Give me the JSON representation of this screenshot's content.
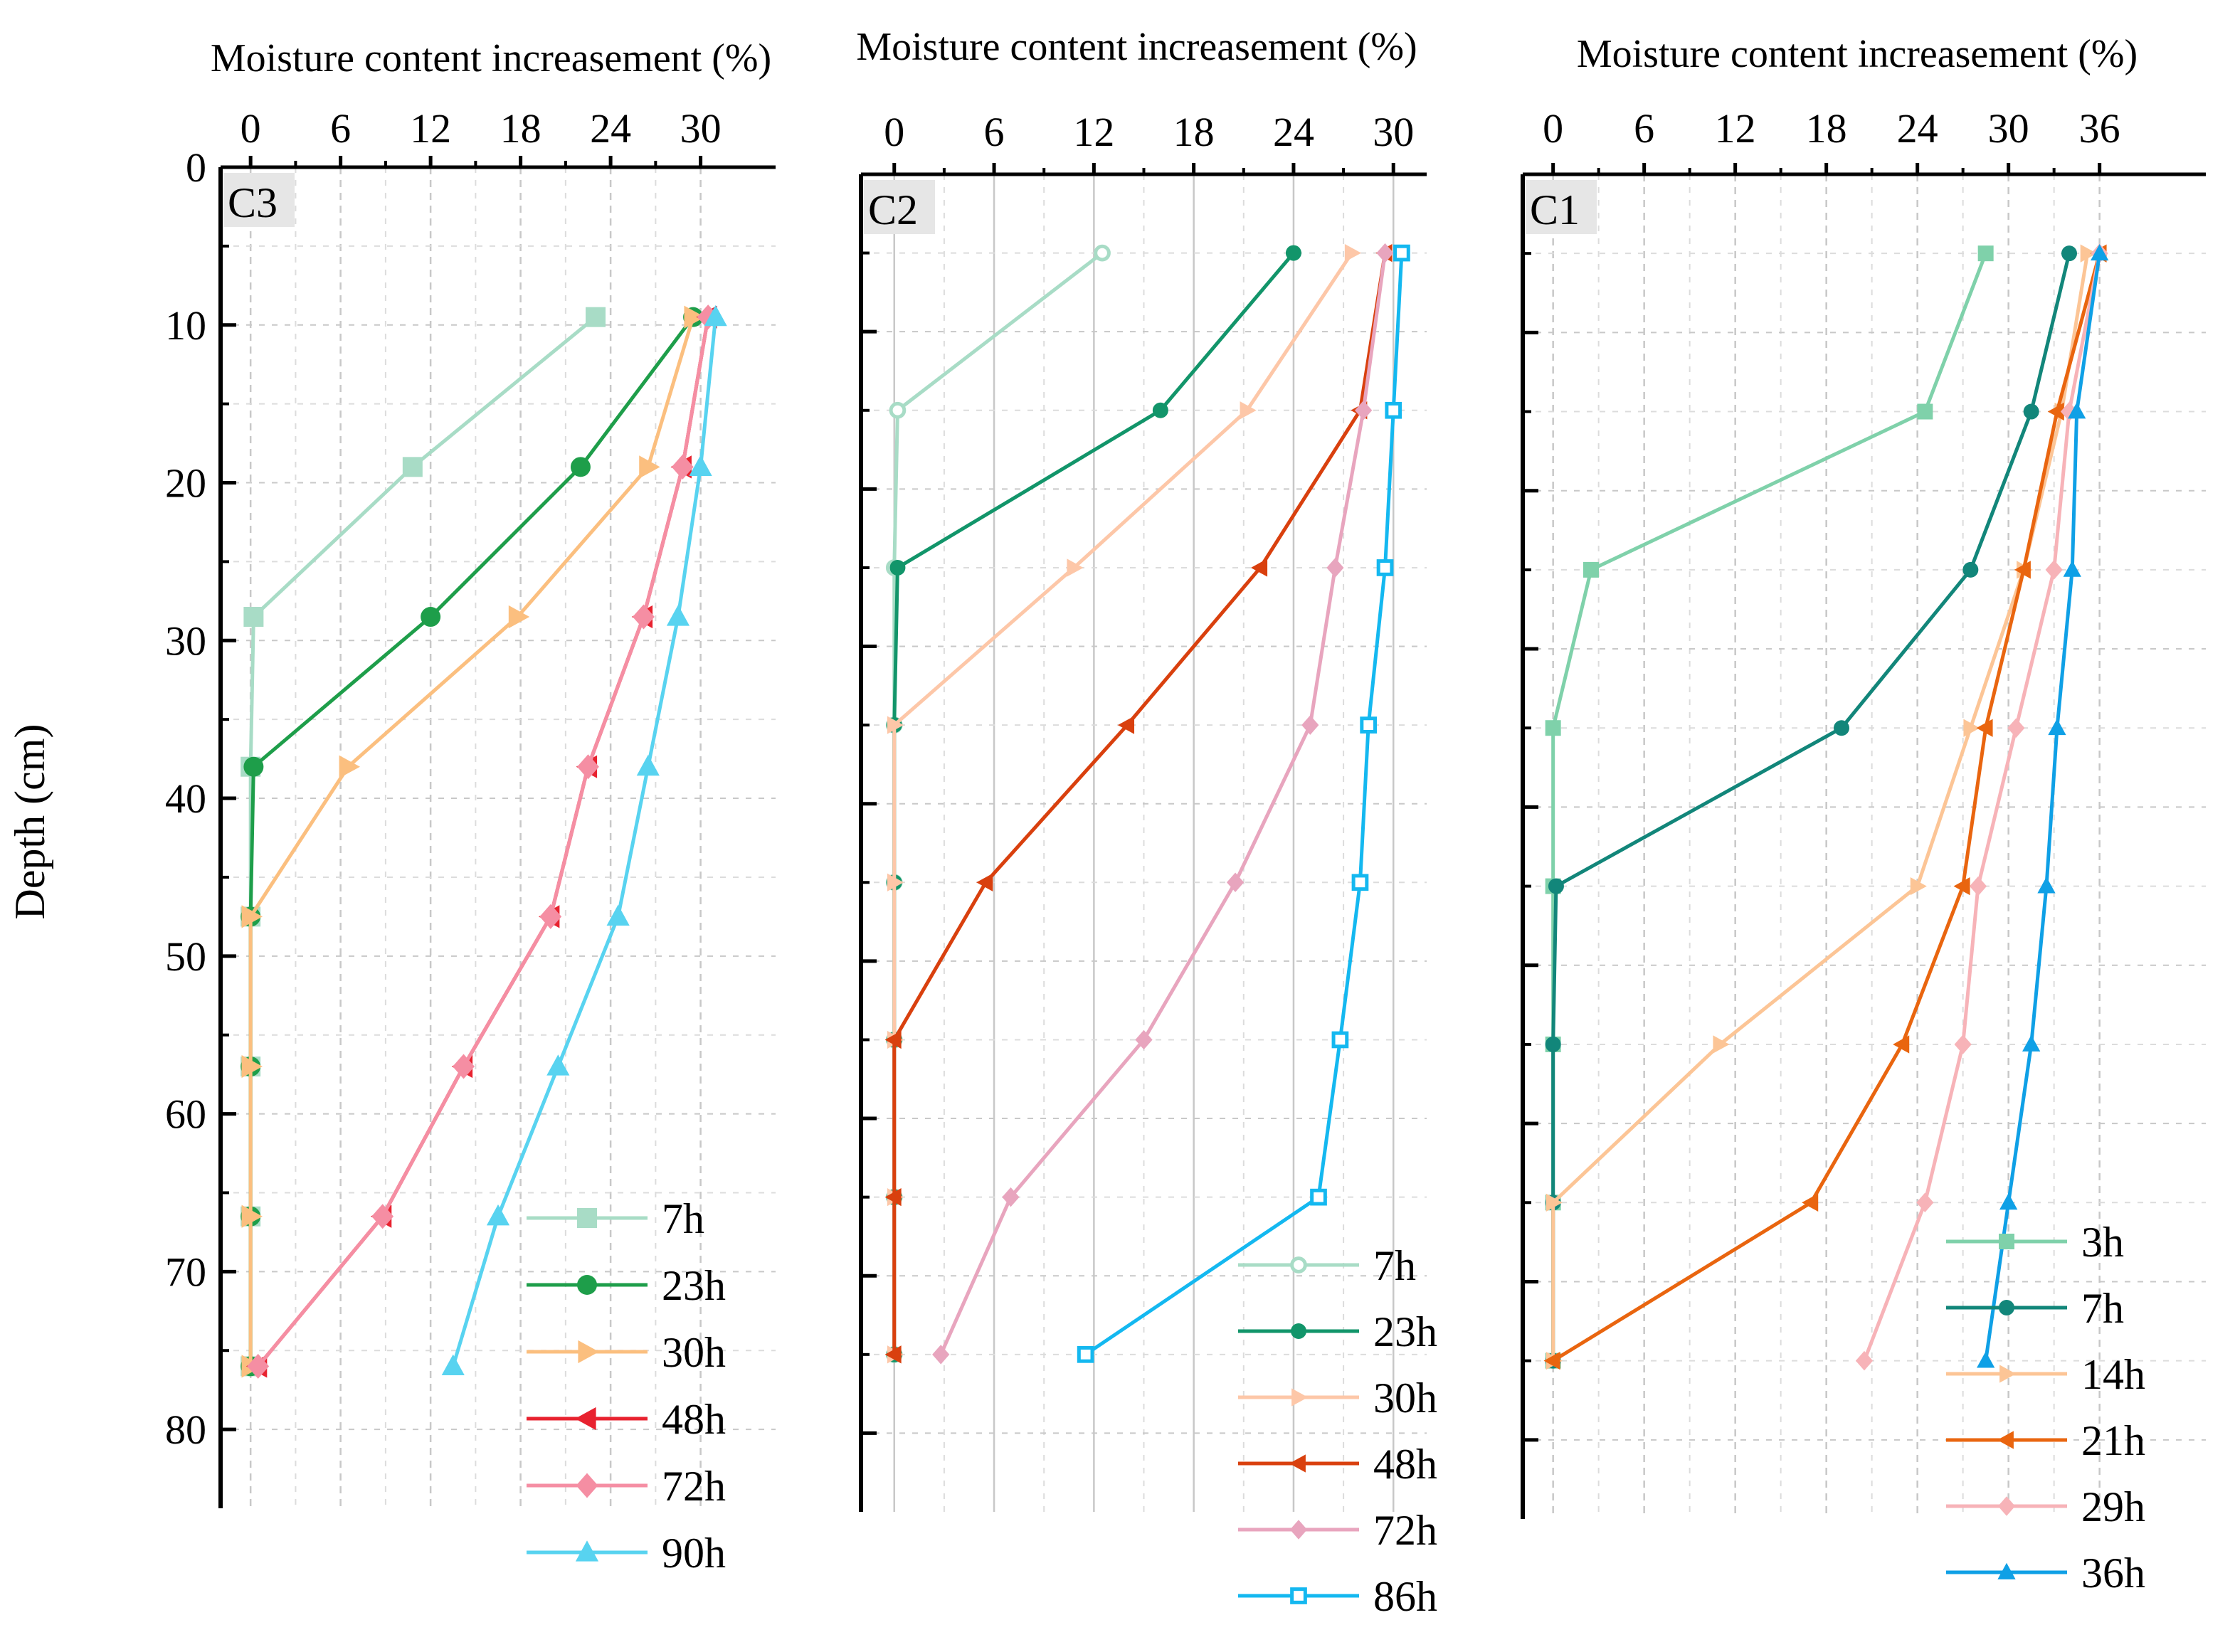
{
  "figure": {
    "ylabel": "Depth (cm)",
    "y_ticks": [
      "0",
      "10",
      "20",
      "30",
      "40",
      "50",
      "60",
      "70",
      "80"
    ]
  },
  "chart_data": [
    {
      "type": "line",
      "panel_label": "C3",
      "title": "Moisture content increasement (%)",
      "xlabel": "Moisture content increasement (%)",
      "ylabel": "Depth (cm)",
      "x_ticks": [
        0,
        6,
        12,
        18,
        24,
        30
      ],
      "xlim": [
        -2,
        35
      ],
      "ylim": [
        0,
        85
      ],
      "depths": [
        9.5,
        19,
        28.5,
        38,
        47.5,
        57,
        66.5,
        76
      ],
      "legend_position": "bottom-right",
      "series": [
        {
          "name": "7h",
          "color": "#a8dcc6",
          "marker": "square",
          "values": [
            23,
            10.8,
            0.2,
            0,
            0,
            0,
            0,
            0
          ]
        },
        {
          "name": "23h",
          "color": "#1e9e4a",
          "marker": "circle",
          "values": [
            29.5,
            22,
            12,
            0.2,
            0,
            0,
            0,
            0
          ]
        },
        {
          "name": "30h",
          "color": "#fbbf7f",
          "marker": "triangle-right",
          "values": [
            29.5,
            26.5,
            17.8,
            6.5,
            0,
            0,
            0,
            0
          ]
        },
        {
          "name": "48h",
          "color": "#e8222f",
          "marker": "triangle-left",
          "values": [
            30.5,
            28.8,
            26.2,
            22.5,
            20,
            14.2,
            8.8,
            0.5
          ]
        },
        {
          "name": "72h",
          "color": "#f58ea3",
          "marker": "diamond",
          "values": [
            30.5,
            28.8,
            26.2,
            22.5,
            20,
            14.2,
            8.8,
            0.5
          ]
        },
        {
          "name": "90h",
          "color": "#58d3f0",
          "marker": "triangle-up",
          "values": [
            31,
            30,
            28.5,
            26.5,
            24.5,
            20.5,
            16.5,
            13.5
          ]
        }
      ]
    },
    {
      "type": "line",
      "panel_label": "C2",
      "title": "Moisture content increasement (%)",
      "xlabel": "Moisture content increasement (%)",
      "ylabel": "Depth (cm)",
      "x_ticks": [
        0,
        6,
        12,
        18,
        24,
        30
      ],
      "xlim": [
        -2,
        32
      ],
      "ylim": [
        0,
        85
      ],
      "depths": [
        5,
        15,
        25,
        35,
        45,
        55,
        65,
        75
      ],
      "legend_position": "bottom-right",
      "series": [
        {
          "name": "7h",
          "color": "#a8dcc6",
          "marker": "open-circle",
          "values": [
            12.5,
            0.2,
            0,
            0,
            0,
            0,
            0,
            0
          ]
        },
        {
          "name": "23h",
          "color": "#12956a",
          "marker": "circle",
          "values": [
            24,
            16,
            0.2,
            0,
            0,
            0,
            0,
            0
          ]
        },
        {
          "name": "30h",
          "color": "#fdc7a8",
          "marker": "triangle-right",
          "values": [
            27.5,
            21.2,
            10.8,
            0,
            0,
            0,
            0,
            0
          ]
        },
        {
          "name": "48h",
          "color": "#d9400e",
          "marker": "triangle-left",
          "values": [
            29.5,
            28,
            22,
            14,
            5.5,
            0,
            0,
            0
          ]
        },
        {
          "name": "72h",
          "color": "#e8a5be",
          "marker": "diamond",
          "values": [
            29.5,
            28.2,
            26.5,
            25,
            20.5,
            15,
            7,
            2.8
          ]
        },
        {
          "name": "86h",
          "color": "#14b8f0",
          "marker": "open-square",
          "values": [
            30.5,
            30,
            29.5,
            28.5,
            28,
            26.8,
            25.5,
            11.5
          ]
        }
      ]
    },
    {
      "type": "line",
      "panel_label": "C1",
      "title": "Moisture content increasement (%)",
      "xlabel": "Moisture content increasement (%)",
      "ylabel": "Depth (cm)",
      "x_ticks": [
        0,
        6,
        12,
        18,
        24,
        30,
        36
      ],
      "xlim": [
        -2,
        43
      ],
      "ylim": [
        0,
        85
      ],
      "depths": [
        5,
        15,
        25,
        35,
        45,
        55,
        65,
        75
      ],
      "legend_position": "bottom-right",
      "series": [
        {
          "name": "3h",
          "color": "#7fd1aa",
          "marker": "square",
          "values": [
            28.5,
            24.5,
            2.5,
            0,
            0,
            0,
            0,
            0
          ]
        },
        {
          "name": "7h",
          "color": "#12867a",
          "marker": "circle",
          "values": [
            34,
            31.5,
            27.5,
            19,
            0.2,
            0,
            0,
            0
          ]
        },
        {
          "name": "14h",
          "color": "#fcc596",
          "marker": "triangle-right",
          "values": [
            35.2,
            33.5,
            31,
            27.5,
            24,
            11,
            0,
            0
          ]
        },
        {
          "name": "21h",
          "color": "#e9650f",
          "marker": "triangle-left",
          "values": [
            36,
            33.2,
            31,
            28.5,
            27,
            23,
            17,
            0
          ]
        },
        {
          "name": "29h",
          "color": "#f7b3b8",
          "marker": "diamond",
          "values": [
            36,
            34,
            33,
            30.5,
            28,
            27,
            24.5,
            20.5
          ]
        },
        {
          "name": "36h",
          "color": "#0fa0e6",
          "marker": "triangle-up",
          "values": [
            36,
            34.5,
            34.2,
            33.2,
            32.5,
            31.5,
            30,
            28.5
          ]
        }
      ]
    }
  ]
}
